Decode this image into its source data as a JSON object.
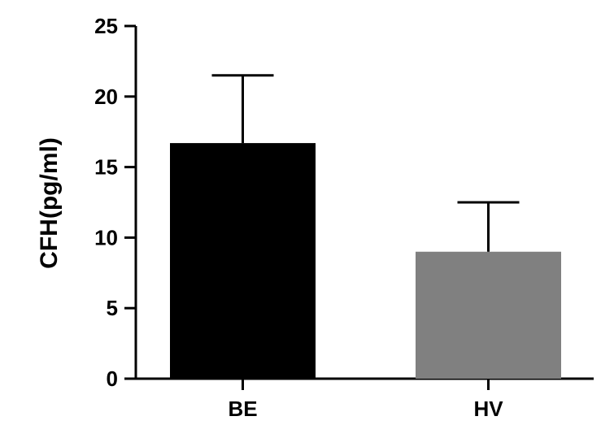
{
  "chart_data": {
    "type": "bar",
    "categories": [
      "BE",
      "HV"
    ],
    "values": [
      16.7,
      9.0
    ],
    "errors_upper": [
      4.8,
      3.5
    ],
    "bar_colors": [
      "#000000",
      "#808080"
    ],
    "ylabel": "CFH(pg/ml)",
    "xlabel": "",
    "ylim": [
      0,
      25
    ],
    "yticks": [
      0,
      5,
      10,
      15,
      20,
      25
    ],
    "ytick_labels": [
      "0",
      "5",
      "10",
      "15",
      "20",
      "25"
    ],
    "grid": false,
    "legend": "none"
  }
}
